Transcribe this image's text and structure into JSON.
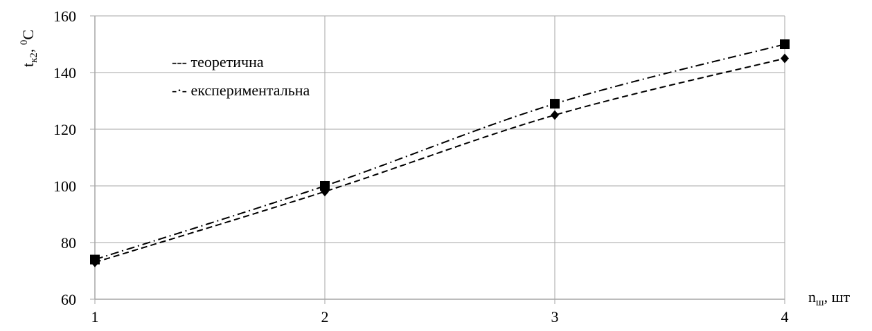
{
  "chart_data": {
    "type": "line",
    "title": "",
    "x": [
      1,
      2,
      3,
      4
    ],
    "xlim": [
      1,
      4
    ],
    "ylim": [
      60,
      160
    ],
    "xticks": [
      "1",
      "2",
      "3",
      "4"
    ],
    "yticks": [
      "60",
      "80",
      "100",
      "120",
      "140",
      "160"
    ],
    "xlabel": {
      "main": "n",
      "sub": "ш",
      "rest": ", шт"
    },
    "ylabel": {
      "main": "t",
      "sub": "к2",
      "rest": ", ",
      "sup": "0",
      "unit": "C"
    },
    "grid": true,
    "legend_position": "top-left",
    "series": [
      {
        "name": "теоретична",
        "values": [
          73,
          98,
          125,
          145
        ],
        "dash": "dashed",
        "marker": "diamond",
        "legend_glyph": "---"
      },
      {
        "name": "експериментальна",
        "values": [
          74,
          100,
          129,
          150
        ],
        "dash": "dashdot",
        "marker": "square",
        "legend_glyph": "-·-"
      }
    ],
    "colors": {
      "line": "#000000",
      "grid": "#a6a6a6",
      "background": "#ffffff"
    }
  }
}
